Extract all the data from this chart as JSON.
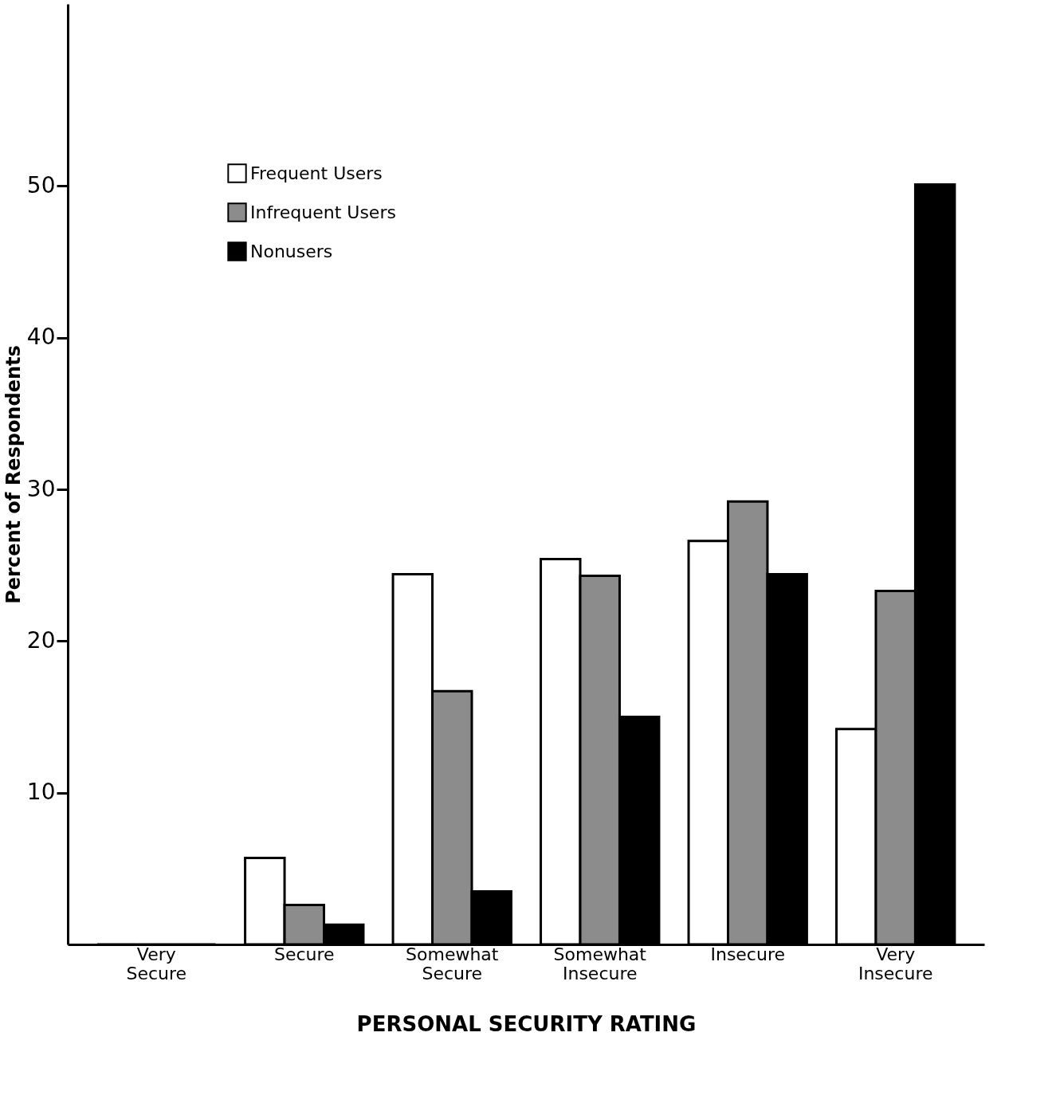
{
  "chart_data": {
    "type": "bar",
    "xlabel": "PERSONAL SECURITY RATING",
    "ylabel": "Percent of Respondents",
    "categories": [
      "Very Secure",
      "Secure",
      "Somewhat Secure",
      "Somewhat Insecure",
      "Insecure",
      "Very Insecure"
    ],
    "series": [
      {
        "name": "Frequent Users",
        "color": "#ffffff",
        "values": [
          0,
          5.7,
          24.4,
          25.4,
          26.6,
          14.2
        ]
      },
      {
        "name": "Infrequent Users",
        "color": "#8c8c8c",
        "values": [
          0,
          2.6,
          16.7,
          24.3,
          29.2,
          23.3
        ]
      },
      {
        "name": "Nonusers",
        "color": "#000000",
        "values": [
          0,
          1.3,
          3.5,
          15,
          24.4,
          50.1
        ]
      }
    ],
    "ylim": [
      0,
      62
    ],
    "yticks": [
      10,
      20,
      30,
      40,
      50
    ],
    "grid": false,
    "legend": "top left"
  }
}
